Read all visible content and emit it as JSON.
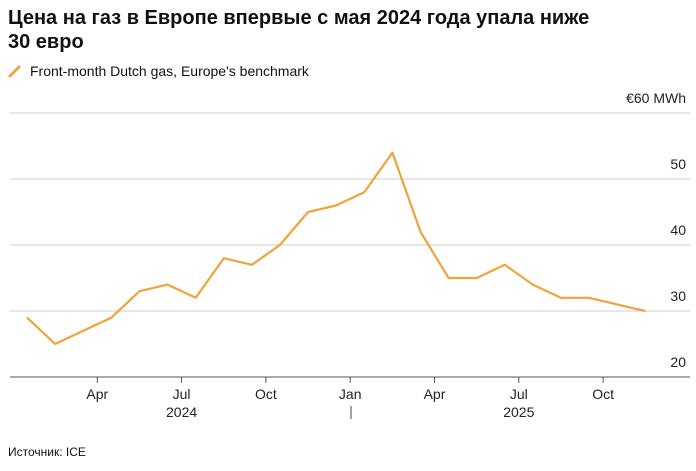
{
  "chart_data": {
    "type": "line",
    "title": "Цена на газ в Европе впервые с мая 2024 года упала ниже 30 евро",
    "source": "Источник: ICE",
    "x": [
      "2024-01",
      "2024-02",
      "2024-03",
      "2024-04",
      "2024-05",
      "2024-06",
      "2024-07",
      "2024-08",
      "2024-09",
      "2024-10",
      "2024-11",
      "2024-12",
      "2025-01",
      "2025-02",
      "2025-03",
      "2025-04",
      "2025-05",
      "2025-06",
      "2025-07",
      "2025-08",
      "2025-09",
      "2025-10",
      "2025-11"
    ],
    "series": [
      {
        "name": "Front-month Dutch gas, Europe's benchmark",
        "color": "#f0a33a",
        "values": [
          29,
          25,
          27,
          29,
          33,
          34,
          32,
          38,
          37,
          40,
          45,
          46,
          48,
          54,
          42,
          35,
          35,
          37,
          34,
          32,
          32,
          31,
          30
        ]
      }
    ],
    "ylim": [
      20,
      60
    ],
    "yticks": [
      20,
      30,
      40,
      50,
      {
        "value": 60,
        "label": "€60 MWh"
      }
    ],
    "xlim": [
      "2024-01",
      "2025-12"
    ],
    "xticks": [
      {
        "value": "2024-04",
        "label": "Apr"
      },
      {
        "value": "2024-07",
        "label": "Jul"
      },
      {
        "value": "2024-10",
        "label": "Oct"
      },
      {
        "value": "2025-01",
        "label": "Jan"
      },
      {
        "value": "2025-04",
        "label": "Apr"
      },
      {
        "value": "2025-07",
        "label": "Jul"
      },
      {
        "value": "2025-10",
        "label": "Oct"
      }
    ],
    "year_labels": [
      {
        "value": "2024-07",
        "label": "2024"
      },
      {
        "value": "2025-07",
        "label": "2025"
      }
    ],
    "grid": true
  }
}
